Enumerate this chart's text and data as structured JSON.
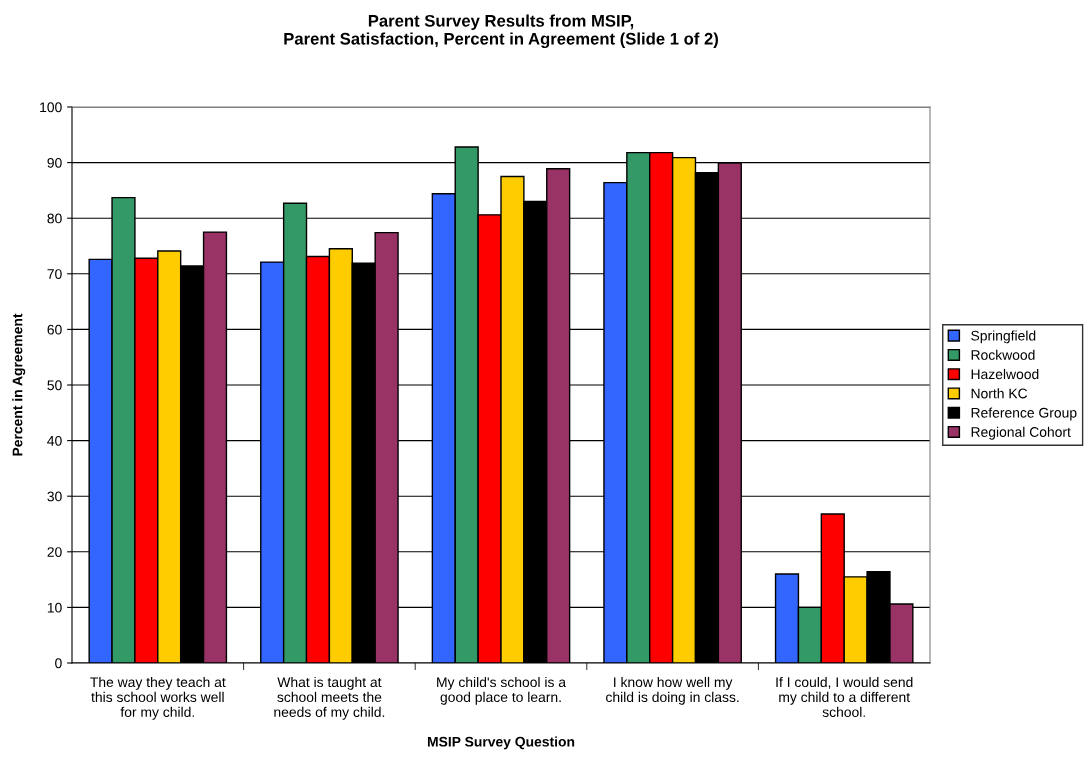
{
  "chart_data": {
    "type": "bar",
    "title": "Parent Survey Results from MSIP,\nParent Satisfaction, Percent in Agreement (Slide 1 of 2)",
    "xlabel": "MSIP Survey Question",
    "ylabel": "Percent in Agreement",
    "categories": [
      "The way they teach at\nthis school works well\nfor my child.",
      "What is taught at\nschool meets the\nneeds of my child.",
      "My child's school is a\ngood place to learn.",
      "I know how well my\nchild is doing in class.",
      "If I could, I would send\nmy child to a different\nschool."
    ],
    "series": [
      {
        "name": "Springfield",
        "color": "#3366ff",
        "values": [
          72.6,
          72.1,
          84.4,
          86.4,
          16.0
        ]
      },
      {
        "name": "Rockwood",
        "color": "#339966",
        "values": [
          83.7,
          82.7,
          92.8,
          91.8,
          10.0
        ]
      },
      {
        "name": "Hazelwood",
        "color": "#ff0000",
        "values": [
          72.8,
          73.1,
          80.6,
          91.8,
          26.8
        ]
      },
      {
        "name": "North KC",
        "color": "#ffcc00",
        "values": [
          74.1,
          74.5,
          87.5,
          90.9,
          15.5
        ]
      },
      {
        "name": "Reference Group",
        "color": "#000000",
        "values": [
          71.4,
          71.9,
          83.0,
          88.2,
          16.4
        ]
      },
      {
        "name": "Regional Cohort",
        "color": "#993366",
        "values": [
          77.5,
          77.4,
          88.9,
          89.9,
          10.6
        ]
      }
    ],
    "ylim": [
      0,
      100
    ],
    "yticks": [
      0,
      10,
      20,
      30,
      40,
      50,
      60,
      70,
      80,
      90,
      100
    ],
    "grid": "y",
    "legend": "right"
  }
}
